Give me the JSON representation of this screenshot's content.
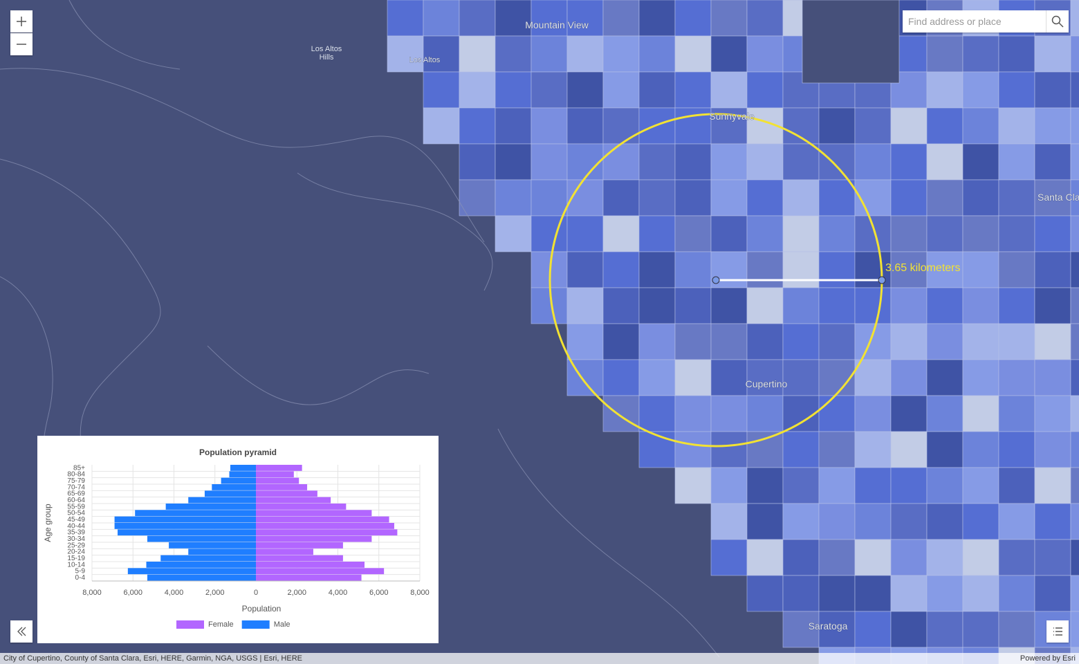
{
  "search_placeholder": "Find address or place",
  "places": [
    "Mountain View",
    "Los Altos",
    "Hills",
    "Los Altos",
    "Sunnyvale",
    "Santa Clara",
    "Cupertino",
    "Saratoga"
  ],
  "measurement": "3.65 kilometers",
  "attribution": "City of Cupertino, County of Santa Clara, Esri, HERE, Garmin, NGA, USGS | Esri, HERE",
  "powered_by": "Powered by Esri",
  "chart_data": {
    "type": "bar",
    "orientation": "horizontal",
    "title": "Population pyramid",
    "x_label": "Population",
    "y_label": "Age group",
    "categories": [
      "0-4",
      "5-9",
      "10-14",
      "15-19",
      "20-24",
      "25-29",
      "30-34",
      "35-39",
      "40-44",
      "45-49",
      "50-54",
      "55-59",
      "60-64",
      "65-69",
      "70-74",
      "75-79",
      "80-84",
      "85+"
    ],
    "series": [
      {
        "name": "Female",
        "color": "#b266ff",
        "values": [
          5150,
          6250,
          5300,
          4250,
          2800,
          4250,
          5650,
          6900,
          6750,
          6500,
          5650,
          4400,
          3650,
          3000,
          2500,
          2100,
          1850,
          2250
        ]
      },
      {
        "name": "Male",
        "color": "#1f7eff",
        "values": [
          -5300,
          -6250,
          -5350,
          -4650,
          -3300,
          -4250,
          -5300,
          -6750,
          -6900,
          -6900,
          -5900,
          -4400,
          -3300,
          -2500,
          -2150,
          -1700,
          -1300,
          -1250
        ]
      }
    ],
    "xlim": [
      -8000,
      8000
    ],
    "xticks": [
      {
        "value": -8000,
        "label": "8,000"
      },
      {
        "value": -6000,
        "label": "6,000"
      },
      {
        "value": -4000,
        "label": "4,000"
      },
      {
        "value": -2000,
        "label": "2,000"
      },
      0,
      {
        "value": 2000,
        "label": "2,000"
      },
      {
        "value": 4000,
        "label": "4,000"
      },
      {
        "value": 6000,
        "label": "6,000"
      },
      {
        "value": 8000,
        "label": "8,000"
      }
    ],
    "grid": true,
    "legend": "bottom"
  }
}
